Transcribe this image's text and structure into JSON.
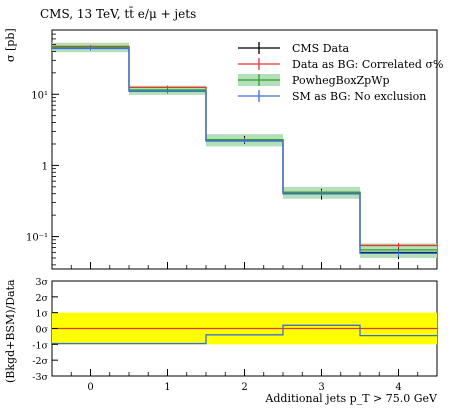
{
  "chart_data": [
    {
      "type": "histogram",
      "title": "CMS, 13 TeV, tt̄ e/μ + jets",
      "ylabel": "σ [pb]",
      "yscale": "log",
      "ylim": [
        0.035,
        80
      ],
      "xlim": [
        -0.5,
        4.5
      ],
      "categories": [
        "0",
        "1",
        "2",
        "3",
        "4"
      ],
      "yticks": [
        {
          "value": 10,
          "label": "10¹"
        },
        {
          "value": 1,
          "label": "1"
        },
        {
          "value": 0.1,
          "label": "10⁻¹"
        }
      ],
      "legend_position": "top-right",
      "series": [
        {
          "name": "CMS Data",
          "color": "#000000",
          "style": "points",
          "values": [
            46,
            11.5,
            2.3,
            0.4,
            0.06
          ],
          "err_lo": [
            43,
            10.3,
            2.0,
            0.33,
            0.048
          ],
          "err_hi": [
            49,
            12.8,
            2.6,
            0.47,
            0.073
          ]
        },
        {
          "name": "Data as BG: Correlated σ%",
          "color": "#e8352f",
          "style": "step",
          "values": [
            47,
            12.5,
            2.3,
            0.42,
            0.075
          ],
          "err_lo": [
            45,
            11.8,
            2.15,
            0.39,
            0.068
          ],
          "err_hi": [
            49,
            13.2,
            2.45,
            0.45,
            0.082
          ]
        },
        {
          "name": "PowhegBoxZpWp",
          "color": "#2ca02c",
          "band_color": "#b3dfb9",
          "style": "band",
          "values": [
            46,
            11.5,
            2.3,
            0.42,
            0.065
          ],
          "band_lo": [
            39,
            9.8,
            1.85,
            0.34,
            0.05
          ],
          "band_hi": [
            53,
            13.2,
            2.75,
            0.5,
            0.08
          ]
        },
        {
          "name": "SM as BG: No exclusion",
          "color": "#3a6fd8",
          "style": "step",
          "values": [
            44,
            11,
            2.2,
            0.4,
            0.058
          ],
          "err_lo": [
            41,
            10.2,
            2.05,
            0.37,
            0.052
          ],
          "err_hi": [
            47,
            11.8,
            2.35,
            0.43,
            0.064
          ]
        }
      ]
    },
    {
      "type": "line",
      "ylabel": "(Bkgd+BSM)/Data",
      "xlabel": "Additional jets p_T > 75.0 GeV",
      "xlim": [
        -0.5,
        4.5
      ],
      "ylim": [
        -3,
        3
      ],
      "yticks": [
        {
          "value": 3,
          "label": "3σ"
        },
        {
          "value": 2,
          "label": "2σ"
        },
        {
          "value": 1,
          "label": "1σ"
        },
        {
          "value": 0,
          "label": "0σ"
        },
        {
          "value": -1,
          "label": "-1σ"
        },
        {
          "value": -2,
          "label": "-2σ"
        },
        {
          "value": -3,
          "label": "-3σ"
        }
      ],
      "xticks": [
        0,
        1,
        2,
        3,
        4
      ],
      "band": {
        "lo": -1,
        "hi": 1,
        "color": "#ffff00"
      },
      "series": [
        {
          "name": "Data as BG: Correlated σ%",
          "color": "#e8352f",
          "values": [
            0,
            0,
            0,
            0,
            0
          ]
        },
        {
          "name": "SM as BG: No exclusion",
          "color": "#3a6fd8",
          "values": [
            -0.95,
            -0.95,
            -0.4,
            0.2,
            -0.45
          ]
        }
      ]
    }
  ]
}
